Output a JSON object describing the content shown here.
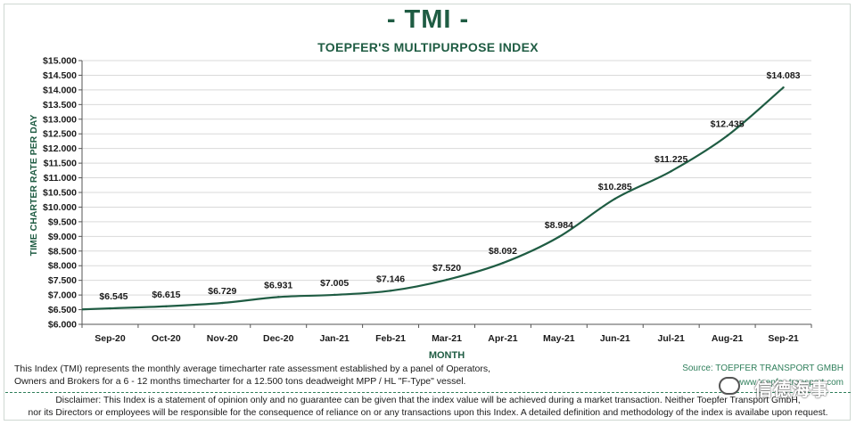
{
  "header": {
    "title": "- TMI -",
    "subtitle": "TOEPFER'S MULTIPURPOSE INDEX"
  },
  "chart_data": {
    "type": "line",
    "title": "- TMI -",
    "subtitle": "TOEPFER'S MULTIPURPOSE INDEX",
    "xlabel": "MONTH",
    "ylabel": "TIME CHARTER RATE PER DAY",
    "categories": [
      "Sep-20",
      "Oct-20",
      "Nov-20",
      "Dec-20",
      "Jan-21",
      "Feb-21",
      "Mar-21",
      "Apr-21",
      "May-21",
      "Jun-21",
      "Jul-21",
      "Aug-21",
      "Sep-21"
    ],
    "values": [
      6545,
      6615,
      6729,
      6931,
      7005,
      7146,
      7520,
      8092,
      8984,
      10285,
      11225,
      12435,
      14083
    ],
    "data_labels": [
      "$6.545",
      "$6.615",
      "$6.729",
      "$6.931",
      "$7.005",
      "$7.146",
      "$7.520",
      "$8.092",
      "$8.984",
      "$10.285",
      "$11.225",
      "$12.435",
      "$14.083"
    ],
    "ylim": [
      6000,
      15000
    ],
    "ytick_step": 500,
    "ytick_labels": [
      "$6.000",
      "$6.500",
      "$7.000",
      "$7.500",
      "$8.000",
      "$8.500",
      "$9.000",
      "$9.500",
      "$10.000",
      "$10.500",
      "$11.000",
      "$11.500",
      "$12.000",
      "$12.500",
      "$13.000",
      "$13.500",
      "$14.000",
      "$14.500",
      "$15.000"
    ],
    "grid": true,
    "line_color": "#1f5c43",
    "grid_color": "#d9d9d9"
  },
  "footer": {
    "description_line1": "This Index (TMI) represents the monthly average timecharter rate assessment established by a panel of Operators,",
    "description_line2": "Owners and Brokers for a 6 - 12 months timecharter for a 12.500 tons deadweight MPP / HL \"F-Type\" vessel.",
    "source": "Source: TOEPFER TRANSPORT GMBH",
    "url": "www.toepfer-transport.com",
    "disclaimer_line1": "Disclaimer: This Index is a statement of opinion only and no guarantee can be given that the index value will be achieved during a market transaction. Neither Toepfer Transport GmbH,",
    "disclaimer_line2": "nor its Directors or employees will be responsible for the consequence of reliance on or any transactions upon this Index.  A detailed definition and methodology of the index is availabe upon request."
  },
  "watermark": {
    "text": "信德海事"
  },
  "colors": {
    "brand_green": "#1f5c43",
    "source_green": "#2f7f5b"
  }
}
